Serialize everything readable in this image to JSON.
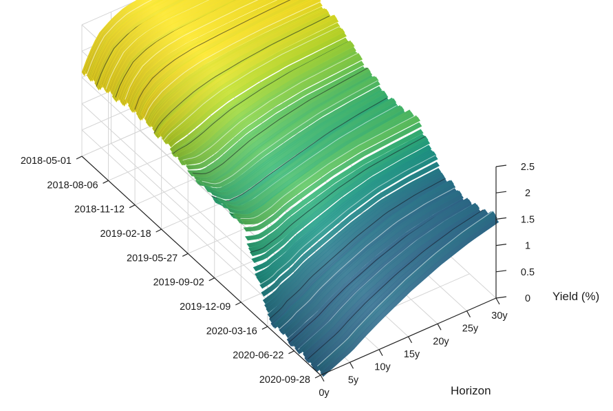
{
  "chart_data": {
    "type": "surface3d",
    "title": "",
    "colormap": "viridis",
    "date_axis": {
      "ticks": [
        "2018-05-01",
        "2018-08-06",
        "2018-11-12",
        "2019-02-18",
        "2019-05-27",
        "2019-09-02",
        "2019-12-09",
        "2020-03-16",
        "2020-06-22",
        "2020-09-28"
      ]
    },
    "horizon_axis": {
      "label": "Horizon",
      "ticks": [
        "0y",
        "5y",
        "10y",
        "15y",
        "20y",
        "25y",
        "30y"
      ],
      "values": [
        0,
        5,
        10,
        15,
        20,
        25,
        30
      ]
    },
    "yield_axis": {
      "label": "Yield (%)",
      "ticks": [
        "0",
        "0.5",
        "1",
        "1.5",
        "2",
        "2.5"
      ],
      "range": [
        0,
        2.5
      ]
    },
    "grid": true,
    "curves": {
      "maturities_years": [
        0,
        1,
        2,
        3,
        5,
        7,
        10,
        15,
        20,
        25,
        30
      ],
      "dates": [
        "2018-05-01",
        "2018-08-06",
        "2018-11-12",
        "2019-02-18",
        "2019-05-27",
        "2019-09-02",
        "2019-12-09",
        "2020-03-16",
        "2020-06-22",
        "2020-09-28"
      ],
      "yields": [
        [
          1.6,
          1.85,
          2.05,
          2.2,
          2.35,
          2.45,
          2.5,
          2.55,
          2.58,
          2.6,
          2.62
        ],
        [
          1.7,
          1.95,
          2.1,
          2.25,
          2.38,
          2.45,
          2.5,
          2.52,
          2.55,
          2.56,
          2.58
        ],
        [
          1.8,
          2.05,
          2.15,
          2.25,
          2.35,
          2.42,
          2.48,
          2.52,
          2.55,
          2.57,
          2.58
        ],
        [
          1.75,
          1.85,
          1.9,
          1.95,
          2.05,
          2.15,
          2.25,
          2.35,
          2.42,
          2.45,
          2.48
        ],
        [
          1.6,
          1.55,
          1.5,
          1.5,
          1.55,
          1.65,
          1.8,
          1.95,
          2.05,
          2.1,
          2.15
        ],
        [
          1.55,
          1.45,
          1.35,
          1.3,
          1.3,
          1.35,
          1.45,
          1.6,
          1.75,
          1.85,
          1.92
        ],
        [
          1.55,
          1.5,
          1.45,
          1.45,
          1.5,
          1.6,
          1.7,
          1.85,
          1.95,
          2.0,
          2.05
        ],
        [
          0.2,
          0.25,
          0.3,
          0.4,
          0.5,
          0.65,
          0.8,
          1.05,
          1.25,
          1.35,
          1.4
        ],
        [
          0.1,
          0.15,
          0.2,
          0.25,
          0.35,
          0.5,
          0.7,
          0.95,
          1.15,
          1.28,
          1.35
        ],
        [
          0.05,
          0.1,
          0.15,
          0.2,
          0.3,
          0.45,
          0.65,
          0.95,
          1.2,
          1.4,
          1.55
        ]
      ]
    }
  }
}
